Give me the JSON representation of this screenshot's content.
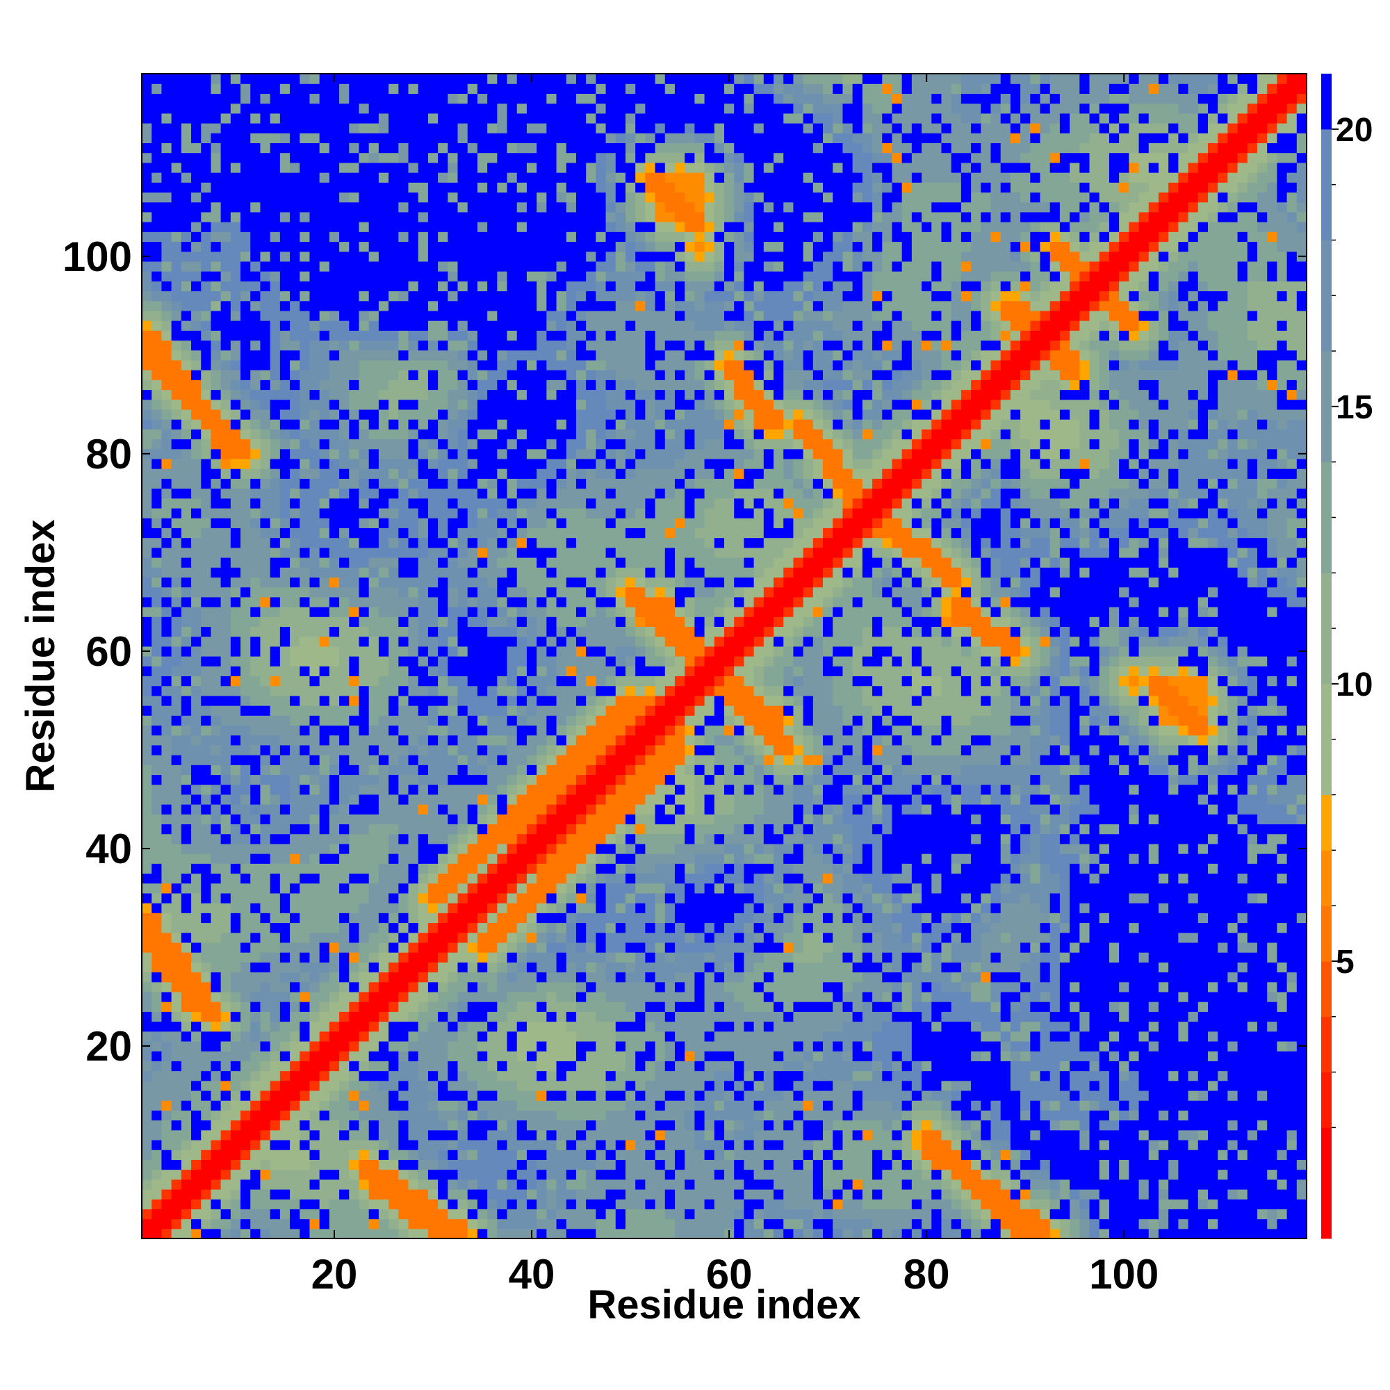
{
  "chart_data": {
    "type": "heatmap",
    "title": "",
    "xlabel": "Residue index",
    "ylabel": "Residue index",
    "n_residues": 118,
    "xlim": [
      1,
      118
    ],
    "ylim": [
      1,
      118
    ],
    "x_ticks": [
      20,
      40,
      60,
      80,
      100
    ],
    "y_ticks": [
      20,
      40,
      60,
      80,
      100
    ],
    "colorbar": {
      "range": [
        0,
        21
      ],
      "ticks": [
        5,
        10,
        15,
        20
      ],
      "minor_ticks": [
        2,
        3,
        4,
        6,
        7,
        8,
        9,
        11,
        12,
        13,
        14,
        16,
        17,
        18,
        19
      ],
      "levels": [
        {
          "max": 2,
          "color": "#ff0000"
        },
        {
          "max": 3,
          "color": "#ff1a00"
        },
        {
          "max": 4,
          "color": "#ff3300"
        },
        {
          "max": 5,
          "color": "#ff5500"
        },
        {
          "max": 6,
          "color": "#ff7700"
        },
        {
          "max": 7,
          "color": "#ff8c00"
        },
        {
          "max": 8,
          "color": "#ffa500"
        },
        {
          "max": 10,
          "color": "#9fb88a"
        },
        {
          "max": 12,
          "color": "#92b08e"
        },
        {
          "max": 14,
          "color": "#84a696"
        },
        {
          "max": 16,
          "color": "#7898a6"
        },
        {
          "max": 18,
          "color": "#6f91b0"
        },
        {
          "max": 20,
          "color": "#6489ba"
        },
        {
          "max": 21,
          "color": "#0000ff"
        }
      ]
    },
    "value_description": "pairwise residue distance; contacts form diagonal bands",
    "features": {
      "main_diagonal": {
        "from": 1,
        "to": 118
      },
      "antidiagonal_bands": [
        {
          "from": [
            1,
            33
          ],
          "to": [
            8,
            23
          ]
        },
        {
          "from": [
            1,
            90
          ],
          "to": [
            11,
            80
          ]
        },
        {
          "from": [
            24,
            6
          ],
          "to": [
            31,
            1
          ]
        },
        {
          "from": [
            53,
            65
          ],
          "to": [
            58,
            58
          ]
        },
        {
          "from": [
            59,
            57
          ],
          "to": [
            66,
            50
          ]
        },
        {
          "from": [
            60,
            89
          ],
          "to": [
            65,
            83
          ]
        },
        {
          "from": [
            69,
            81
          ],
          "to": [
            76,
            72
          ]
        },
        {
          "from": [
            76,
            73
          ],
          "to": [
            83,
            67
          ]
        },
        {
          "from": [
            83,
            64
          ],
          "to": [
            89,
            60
          ]
        },
        {
          "from": [
            80,
            10
          ],
          "to": [
            92,
            1
          ]
        },
        {
          "from": [
            88,
            95
          ],
          "to": [
            95,
            89
          ]
        },
        {
          "from": [
            93,
            101
          ],
          "to": [
            100,
            94
          ]
        },
        {
          "from": [
            103,
            57
          ],
          "to": [
            108,
            52
          ]
        }
      ],
      "parallel_bands": [
        {
          "from": [
            30,
            35
          ],
          "to": [
            52,
            55
          ]
        },
        {
          "from": [
            36,
            31
          ],
          "to": [
            55,
            50
          ]
        }
      ],
      "hotspots": [
        {
          "x": 55,
          "y": 106,
          "size": 3
        },
        {
          "x": 57,
          "y": 101,
          "size": 1
        }
      ]
    }
  }
}
